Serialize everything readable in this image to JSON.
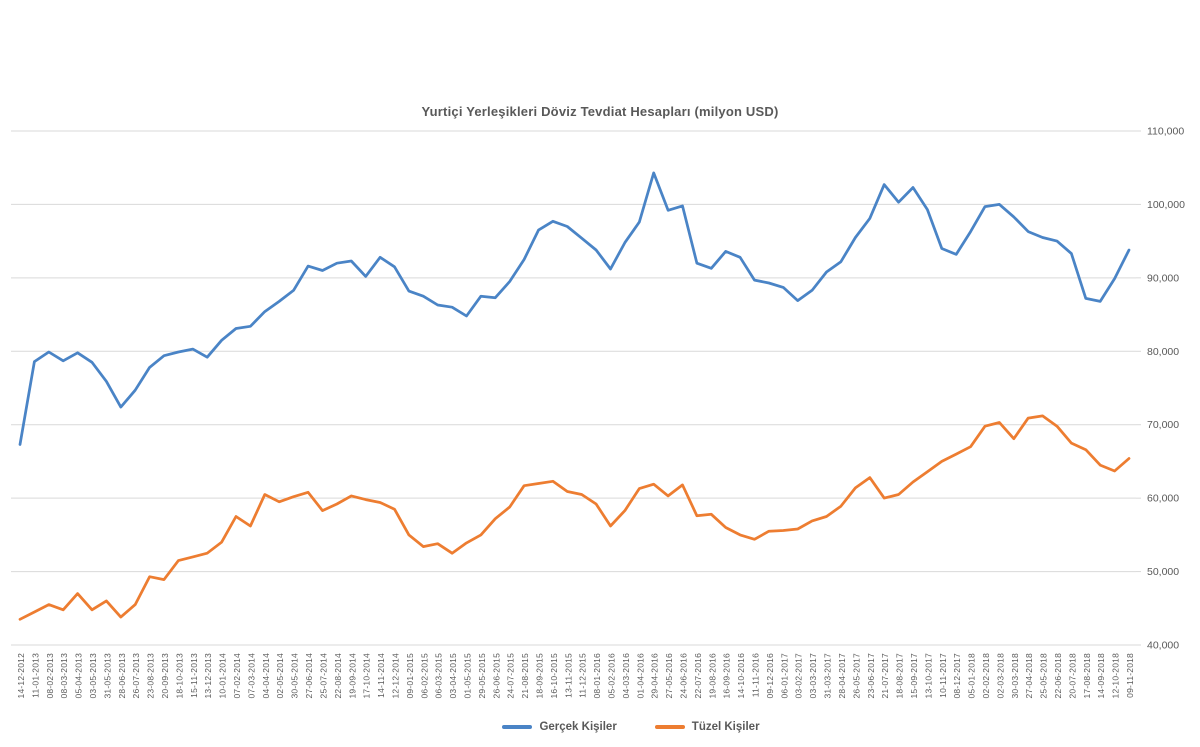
{
  "title": "Yurtiçi Yerleşikleri Döviz Tevdiat Hesapları (milyon USD)",
  "colors": {
    "series_blue": "#4a84c6",
    "series_orange": "#ED7D31",
    "gridline": "#d9d9d9",
    "axis_text": "#595959",
    "title_text": "#595959",
    "background": "#ffffff"
  },
  "chart_data": {
    "type": "line",
    "title": "Yurtiçi Yerleşikleri Döviz Tevdiat Hesapları (milyon USD)",
    "xlabel": "",
    "ylabel": "",
    "ylim": [
      40000,
      110000
    ],
    "grid": true,
    "legend_position": "bottom",
    "y_ticks": [
      "40,000",
      "50,000",
      "60,000",
      "70,000",
      "80,000",
      "90,000",
      "100,000",
      "110,000"
    ],
    "x_labels": [
      "14-12-2012",
      "11-01-2013",
      "08-02-2013",
      "08-03-2013",
      "05-04-2013",
      "03-05-2013",
      "31-05-2013",
      "28-06-2013",
      "26-07-2013",
      "23-08-2013",
      "20-09-2013",
      "18-10-2013",
      "15-11-2013",
      "13-12-2013",
      "10-01-2014",
      "07-02-2014",
      "07-03-2014",
      "04-04-2014",
      "02-05-2014",
      "30-05-2014",
      "27-06-2014",
      "25-07-2014",
      "22-08-2014",
      "19-09-2014",
      "17-10-2014",
      "14-11-2014",
      "12-12-2014",
      "09-01-2015",
      "06-02-2015",
      "06-03-2015",
      "03-04-2015",
      "01-05-2015",
      "29-05-2015",
      "26-06-2015",
      "24-07-2015",
      "21-08-2015",
      "18-09-2015",
      "16-10-2015",
      "13-11-2015",
      "11-12-2015",
      "08-01-2016",
      "05-02-2016",
      "04-03-2016",
      "01-04-2016",
      "29-04-2016",
      "27-05-2016",
      "24-06-2016",
      "22-07-2016",
      "19-08-2016",
      "16-09-2016",
      "14-10-2016",
      "11-11-2016",
      "09-12-2016",
      "06-01-2017",
      "03-02-2017",
      "03-03-2017",
      "31-03-2017",
      "28-04-2017",
      "26-05-2017",
      "23-06-2017",
      "21-07-2017",
      "18-08-2017",
      "15-09-2017",
      "13-10-2017",
      "10-11-2017",
      "08-12-2017",
      "05-01-2018",
      "02-02-2018",
      "02-03-2018",
      "30-03-2018",
      "27-04-2018",
      "25-05-2018",
      "22-06-2018",
      "20-07-2018",
      "17-08-2018",
      "14-09-2018",
      "12-10-2018",
      "09-11-2018"
    ],
    "series": [
      {
        "name": "Gerçek Kişiler",
        "color": "#4a84c6",
        "values": [
          67300,
          78600,
          79900,
          78700,
          79800,
          78500,
          75900,
          72400,
          74700,
          77800,
          79400,
          79900,
          80300,
          79200,
          81500,
          83100,
          83400,
          85400,
          86800,
          88300,
          91600,
          91000,
          92000,
          92300,
          90200,
          92800,
          91500,
          88200,
          87500,
          86300,
          86000,
          84800,
          87500,
          87300,
          89500,
          92500,
          96500,
          97700,
          97000,
          95400,
          93800,
          91200,
          94800,
          97600,
          104300,
          99200,
          99800,
          92000,
          91300,
          93600,
          92800,
          89700,
          89300,
          88700,
          86900,
          88300,
          90800,
          92200,
          95500,
          98100,
          102700,
          100300,
          102300,
          99300,
          94000,
          93200,
          96300,
          99700,
          100000,
          98300,
          96300,
          95500,
          95000,
          93300,
          87200,
          86800,
          89900,
          93800
        ]
      },
      {
        "name": "Tüzel Kişiler",
        "color": "#ED7D31",
        "values": [
          43500,
          44500,
          45500,
          44800,
          47000,
          44800,
          46000,
          43800,
          45500,
          49300,
          48900,
          51500,
          52000,
          52500,
          54000,
          57500,
          56200,
          60500,
          59500,
          60200,
          60800,
          58300,
          59200,
          60300,
          59800,
          59400,
          58500,
          55000,
          53400,
          53800,
          52500,
          53900,
          55000,
          57200,
          58800,
          61700,
          62000,
          62300,
          60900,
          60500,
          59200,
          56200,
          58300,
          61300,
          61900,
          60300,
          61800,
          57600,
          57800,
          56000,
          55000,
          54400,
          55500,
          55600,
          55800,
          56900,
          57500,
          58900,
          61400,
          62800,
          60000,
          60500,
          62200,
          63600,
          65000,
          66000,
          67000,
          69800,
          70300,
          68100,
          70900,
          71200,
          69800,
          67500,
          66600,
          64500,
          63700,
          65400
        ]
      }
    ]
  }
}
